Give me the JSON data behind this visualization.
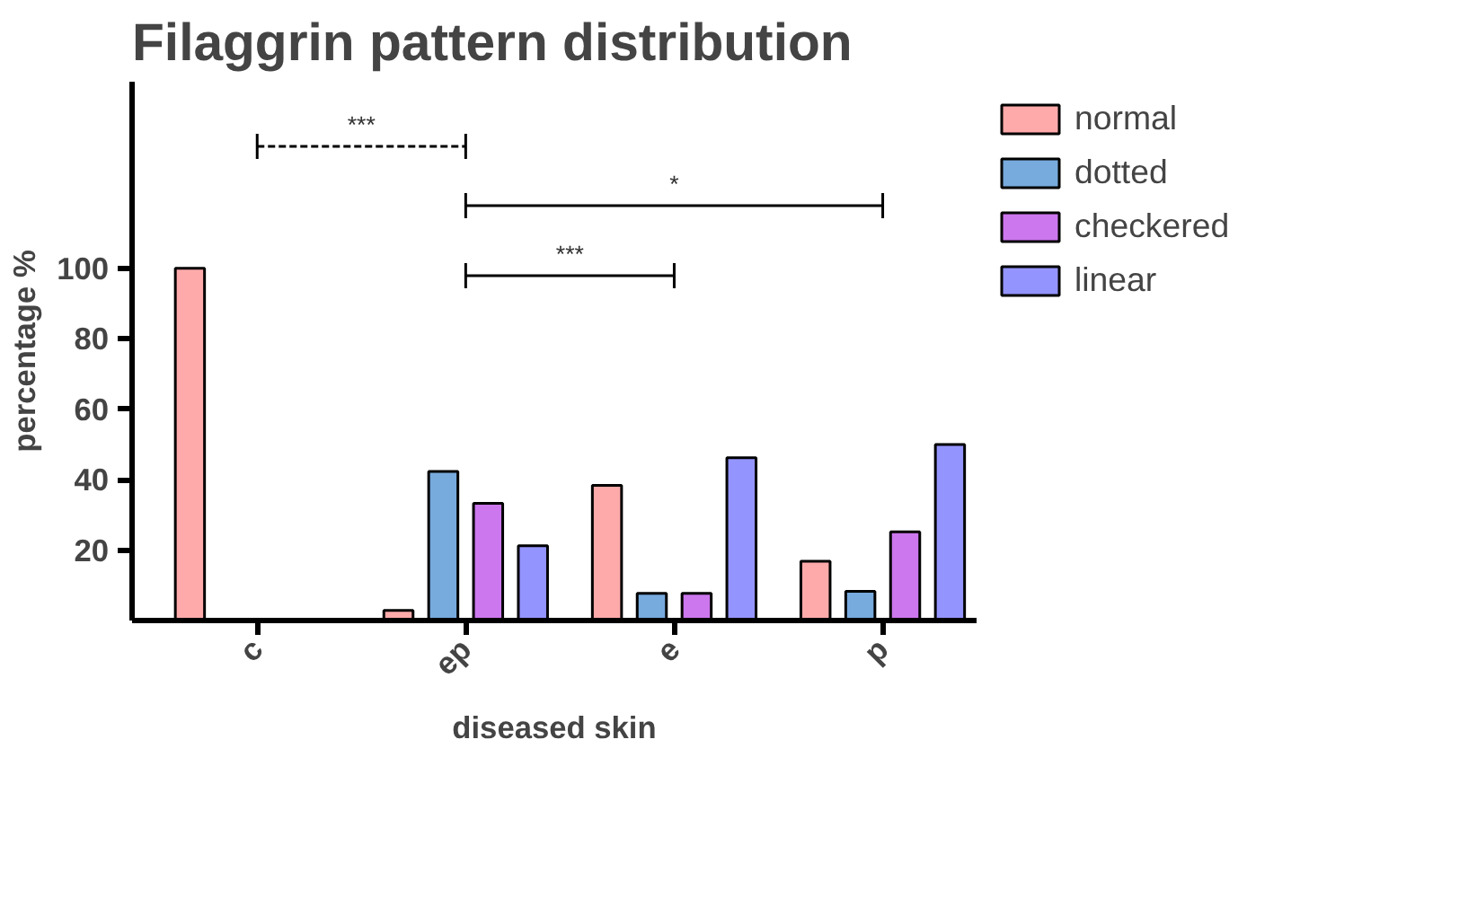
{
  "chart_data": {
    "type": "bar",
    "title": "Filaggrin pattern distribution",
    "xlabel": "diseased skin",
    "ylabel": "percentage %",
    "categories": [
      "c",
      "ep",
      "e",
      "p"
    ],
    "series": [
      {
        "name": "normal",
        "color": "#ffaaaa",
        "values": [
          100,
          2.9,
          38.4,
          16.8
        ]
      },
      {
        "name": "dotted",
        "color": "#77aadd",
        "values": [
          0,
          42.3,
          7.7,
          8.3
        ]
      },
      {
        "name": "checkered",
        "color": "#cc77ee",
        "values": [
          0,
          33.3,
          7.7,
          25.2
        ]
      },
      {
        "name": "linear",
        "color": "#9494ff",
        "values": [
          0,
          21.2,
          46.2,
          50
        ]
      }
    ],
    "ylim": [
      0,
      153
    ],
    "yticks": [
      20,
      40,
      60,
      80,
      100
    ],
    "annotations": [
      "***",
      "*",
      "***"
    ],
    "grid": false,
    "legend": "top right"
  }
}
